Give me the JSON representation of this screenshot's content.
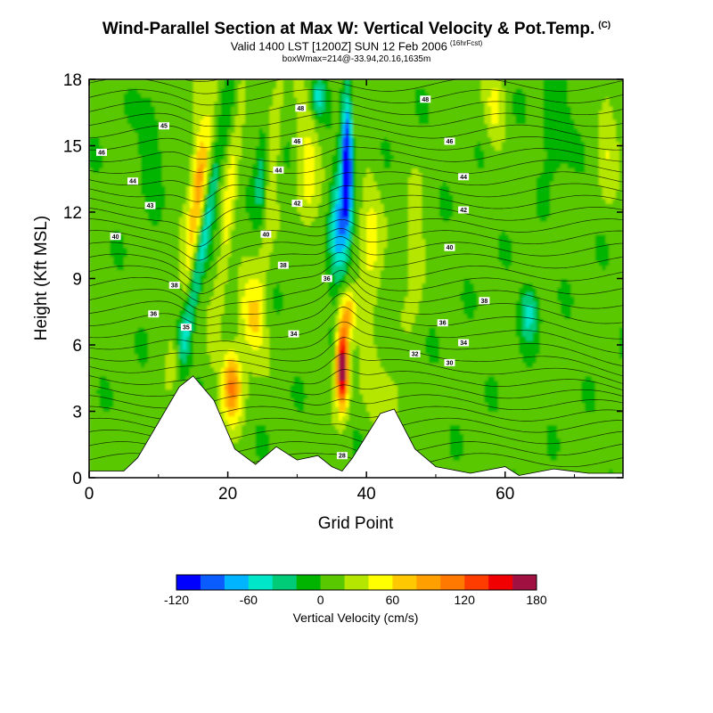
{
  "header": {
    "title": "Wind-Parallel Section at Max W: Vertical Velocity & Pot.Temp.",
    "title_tag": "(C)",
    "subtitle": "Valid 1400 LST [1200Z] SUN 12 Feb 2006",
    "subtitle_tag": "(16hrFcst)",
    "box_info": "boxWmax=214@-33.94,20.16,1635m"
  },
  "chart_data": {
    "type": "heatmap",
    "title": "Wind-Parallel Section at Max W: Vertical Velocity & Pot.Temp.",
    "xlabel": "Grid Point",
    "ylabel": "Height (Kft MSL)",
    "xlim": [
      0,
      77
    ],
    "ylim": [
      0,
      18
    ],
    "x_ticks": [
      "0",
      "20",
      "40",
      "60"
    ],
    "x_tick_values": [
      0,
      20,
      40,
      60
    ],
    "y_ticks": [
      "0",
      "3",
      "6",
      "9",
      "12",
      "15",
      "18"
    ],
    "y_tick_values": [
      0,
      3,
      6,
      9,
      12,
      15,
      18
    ],
    "colorbar": {
      "title": "Vertical Velocity (cm/s)",
      "min": -120,
      "max": 180,
      "step": 20,
      "labels": [
        "-120",
        "-60",
        "0",
        "60",
        "120",
        "180"
      ],
      "label_values": [
        -120,
        -60,
        0,
        60,
        120,
        180
      ],
      "colors": [
        "#0000ff",
        "#0a5cff",
        "#00b4ff",
        "#00e6c8",
        "#00cc78",
        "#00b400",
        "#5ac800",
        "#b4e600",
        "#ffff00",
        "#ffc800",
        "#ffa000",
        "#ff7800",
        "#ff3c00",
        "#f00000",
        "#a01040"
      ]
    },
    "features": [
      {
        "name": "strong updraft",
        "x": 36.5,
        "z_peak": 5.0,
        "w_peak": 180
      },
      {
        "name": "strong downdraft",
        "x": 37.0,
        "z_peak": 14.5,
        "w_peak": -120
      },
      {
        "name": "secondary updraft",
        "x": 20.5,
        "z_peak": 4.3,
        "w_peak": 80
      }
    ],
    "terrain": [
      {
        "x": 0,
        "z": 0.3
      },
      {
        "x": 5,
        "z": 0.3
      },
      {
        "x": 7,
        "z": 0.9
      },
      {
        "x": 10,
        "z": 2.5
      },
      {
        "x": 13,
        "z": 4.1
      },
      {
        "x": 15,
        "z": 4.6
      },
      {
        "x": 18,
        "z": 3.5
      },
      {
        "x": 21,
        "z": 1.3
      },
      {
        "x": 24,
        "z": 0.6
      },
      {
        "x": 27,
        "z": 1.4
      },
      {
        "x": 30,
        "z": 0.8
      },
      {
        "x": 33,
        "z": 1.0
      },
      {
        "x": 35,
        "z": 0.5
      },
      {
        "x": 36.5,
        "z": 0.3
      },
      {
        "x": 38,
        "z": 0.9
      },
      {
        "x": 42,
        "z": 2.9
      },
      {
        "x": 44,
        "z": 3.1
      },
      {
        "x": 47,
        "z": 1.3
      },
      {
        "x": 50,
        "z": 0.5
      },
      {
        "x": 55,
        "z": 0.2
      },
      {
        "x": 60,
        "z": 0.5
      },
      {
        "x": 62,
        "z": 0.1
      },
      {
        "x": 67,
        "z": 0.4
      },
      {
        "x": 72,
        "z": 0.2
      },
      {
        "x": 77,
        "z": 0.2
      }
    ],
    "theta_label_positions": [
      {
        "text": "46",
        "x": 1.8,
        "z": 14.7
      },
      {
        "text": "45",
        "x": 10.8,
        "z": 15.9
      },
      {
        "text": "44",
        "x": 6.3,
        "z": 13.4
      },
      {
        "text": "43",
        "x": 8.8,
        "z": 12.3
      },
      {
        "text": "40",
        "x": 3.8,
        "z": 10.9
      },
      {
        "text": "38",
        "x": 12.3,
        "z": 8.7
      },
      {
        "text": "36",
        "x": 9.3,
        "z": 7.4
      },
      {
        "text": "35",
        "x": 14.0,
        "z": 6.8
      },
      {
        "text": "48",
        "x": 30.5,
        "z": 16.7
      },
      {
        "text": "46",
        "x": 30.0,
        "z": 15.2
      },
      {
        "text": "44",
        "x": 27.3,
        "z": 13.9
      },
      {
        "text": "42",
        "x": 30.0,
        "z": 12.4
      },
      {
        "text": "40",
        "x": 25.5,
        "z": 11.0
      },
      {
        "text": "38",
        "x": 28.0,
        "z": 9.6
      },
      {
        "text": "36",
        "x": 34.3,
        "z": 9.0
      },
      {
        "text": "34",
        "x": 29.5,
        "z": 6.5
      },
      {
        "text": "48",
        "x": 48.5,
        "z": 17.1
      },
      {
        "text": "46",
        "x": 52.0,
        "z": 15.2
      },
      {
        "text": "44",
        "x": 54.0,
        "z": 13.6
      },
      {
        "text": "42",
        "x": 54.0,
        "z": 12.1
      },
      {
        "text": "40",
        "x": 52.0,
        "z": 10.4
      },
      {
        "text": "38",
        "x": 57.0,
        "z": 8.0
      },
      {
        "text": "36",
        "x": 51.0,
        "z": 7.0
      },
      {
        "text": "34",
        "x": 54.0,
        "z": 6.1
      },
      {
        "text": "32",
        "x": 47.0,
        "z": 5.6
      },
      {
        "text": "30",
        "x": 52.0,
        "z": 5.2
      },
      {
        "text": "28",
        "x": 36.5,
        "z": 1.0
      }
    ]
  }
}
